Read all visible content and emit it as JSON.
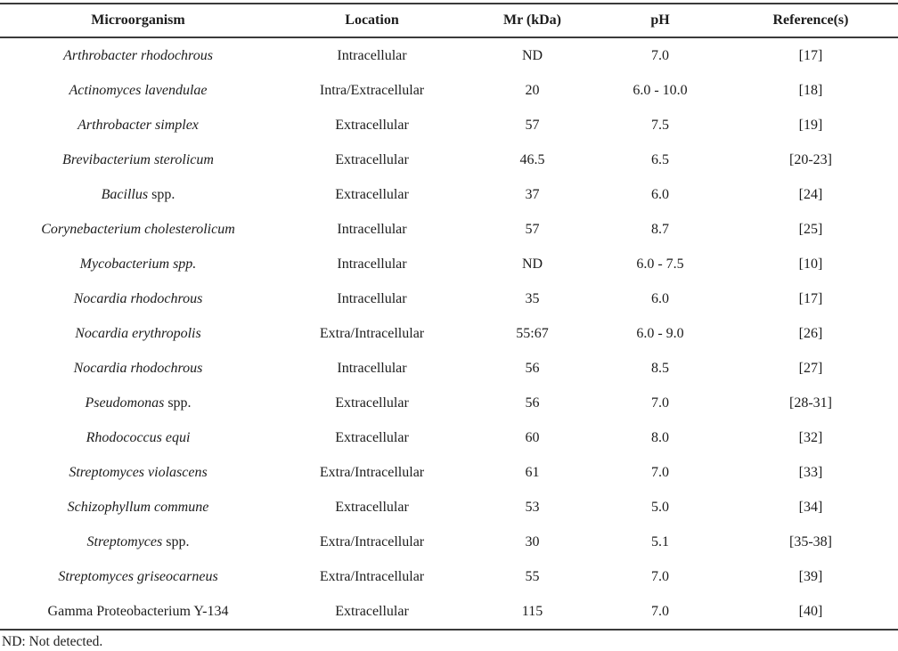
{
  "table": {
    "headers": {
      "microorganism": "Microorganism",
      "location": "Location",
      "mr": "Mr (kDa)",
      "ph": "pH",
      "reference": "Reference(s)"
    },
    "rows": [
      {
        "name_italic": "Arthrobacter rhodochrous",
        "name_roman": "",
        "location": "Intracellular",
        "mr": "ND",
        "ph": "7.0",
        "reference": "[17]"
      },
      {
        "name_italic": "Actinomyces lavendulae",
        "name_roman": "",
        "location": "Intra/Extracellular",
        "mr": "20",
        "ph": "6.0 - 10.0",
        "reference": "[18]"
      },
      {
        "name_italic": "Arthrobacter simplex",
        "name_roman": "",
        "location": "Extracellular",
        "mr": "57",
        "ph": "7.5",
        "reference": "[19]"
      },
      {
        "name_italic": "Brevibacterium sterolicum",
        "name_roman": "",
        "location": "Extracellular",
        "mr": "46.5",
        "ph": "6.5",
        "reference": "[20-23]"
      },
      {
        "name_italic": "Bacillus",
        "name_roman": " spp.",
        "location": "Extracellular",
        "mr": "37",
        "ph": "6.0",
        "reference": "[24]"
      },
      {
        "name_italic": "Corynebacterium cholesterolicum",
        "name_roman": "",
        "location": "Intracellular",
        "mr": "57",
        "ph": "8.7",
        "reference": "[25]"
      },
      {
        "name_italic": "Mycobacterium spp.",
        "name_roman": "",
        "location": "Intracellular",
        "mr": "ND",
        "ph": "6.0 - 7.5",
        "reference": "[10]"
      },
      {
        "name_italic": "Nocardia rhodochrous",
        "name_roman": "",
        "location": "Intracellular",
        "mr": "35",
        "ph": "6.0",
        "reference": "[17]"
      },
      {
        "name_italic": "Nocardia erythropolis",
        "name_roman": "",
        "location": "Extra/Intracellular",
        "mr": "55:67",
        "ph": "6.0 - 9.0",
        "reference": "[26]"
      },
      {
        "name_italic": "Nocardia rhodochrous",
        "name_roman": "",
        "location": "Intracellular",
        "mr": "56",
        "ph": "8.5",
        "reference": "[27]"
      },
      {
        "name_italic": "Pseudomonas",
        "name_roman": " spp.",
        "location": "Extracellular",
        "mr": "56",
        "ph": "7.0",
        "reference": "[28-31]"
      },
      {
        "name_italic": "Rhodococcus equi",
        "name_roman": "",
        "location": "Extracellular",
        "mr": "60",
        "ph": "8.0",
        "reference": "[32]"
      },
      {
        "name_italic": "Streptomyces violascens",
        "name_roman": "",
        "location": "Extra/Intracellular",
        "mr": "61",
        "ph": "7.0",
        "reference": "[33]"
      },
      {
        "name_italic": "Schizophyllum commune",
        "name_roman": "",
        "location": "Extracellular",
        "mr": "53",
        "ph": "5.0",
        "reference": "[34]"
      },
      {
        "name_italic": "Streptomyces",
        "name_roman": " spp.",
        "location": "Extra/Intracellular",
        "mr": "30",
        "ph": "5.1",
        "reference": "[35-38]"
      },
      {
        "name_italic": "Streptomyces griseocarneus",
        "name_roman": "",
        "location": "Extra/Intracellular",
        "mr": "55",
        "ph": "7.0",
        "reference": "[39]"
      },
      {
        "name_italic": "",
        "name_roman": "Gamma Proteobacterium Y-134",
        "location": "Extracellular",
        "mr": "115",
        "ph": "7.0",
        "reference": "[40]"
      }
    ]
  },
  "footnote": "ND: Not detected.",
  "colors": {
    "text": "#1c1c1c",
    "rule": "#3a3a3a",
    "background": "#ffffff"
  }
}
